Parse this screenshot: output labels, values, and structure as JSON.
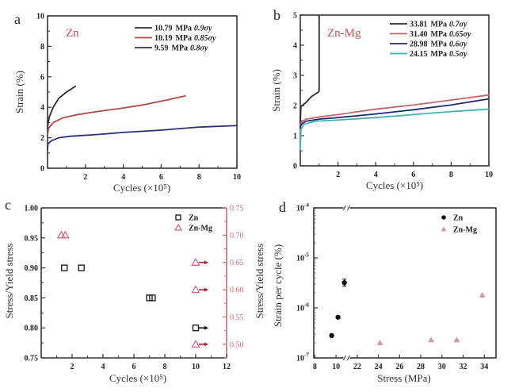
{
  "chart_data": [
    {
      "id": "a",
      "type": "line",
      "panel_label": "a",
      "material_label": "Zn",
      "xlabel": "Cycles (×10⁵)",
      "ylabel": "Strain (%)",
      "xlim": [
        0,
        10
      ],
      "ylim": [
        0,
        10
      ],
      "xticks": [
        2,
        4,
        6,
        8,
        10
      ],
      "yticks": [
        0,
        2,
        4,
        6,
        8,
        10
      ],
      "legend_position": "top-right",
      "series": [
        {
          "name": "10.79 MPa 0.9σy",
          "stress": "10.79",
          "unit": "MPa",
          "ratio": "0.9σy",
          "color": "#2b2b2b",
          "x": [
            0,
            0.02,
            0.1,
            0.3,
            0.6,
            1.0,
            1.5
          ],
          "y": [
            2.3,
            2.9,
            3.4,
            4.0,
            4.6,
            5.0,
            5.4
          ]
        },
        {
          "name": "10.19 MPa 0.85σy",
          "stress": "10.19",
          "unit": "MPa",
          "ratio": "0.85σy",
          "color": "#b04a4a",
          "x": [
            0,
            0.05,
            0.3,
            0.8,
            1.5,
            2.5,
            4.0,
            5.0,
            6.0,
            7.3
          ],
          "y": [
            2.2,
            2.6,
            3.0,
            3.3,
            3.5,
            3.7,
            3.95,
            4.15,
            4.4,
            4.75
          ]
        },
        {
          "name": "9.59 MPa 0.8σy",
          "stress": "9.59",
          "unit": "MPa",
          "ratio": "0.8σy",
          "color": "#2e2e7a",
          "x": [
            0,
            0.02,
            0.2,
            0.6,
            1.2,
            2.5,
            4.0,
            6.0,
            8.0,
            10.0
          ],
          "y": [
            1.2,
            1.6,
            1.8,
            2.0,
            2.1,
            2.2,
            2.35,
            2.5,
            2.7,
            2.8
          ]
        }
      ]
    },
    {
      "id": "b",
      "type": "line",
      "panel_label": "b",
      "material_label": "Zn-Mg",
      "xlabel": "Cycles (×10⁵)",
      "ylabel": "Strain (%)",
      "xlim": [
        0,
        10
      ],
      "ylim": [
        0,
        5
      ],
      "xticks": [
        2,
        4,
        6,
        8,
        10
      ],
      "yticks": [
        0,
        1,
        2,
        3,
        4,
        5
      ],
      "legend_position": "top-right",
      "series": [
        {
          "name": "33.81 MPa 0.7σy",
          "stress": "33.81",
          "unit": "MPa",
          "ratio": "0.7σy",
          "color": "#2b2b2b",
          "x": [
            0,
            0.03,
            0.1,
            0.3,
            0.6,
            0.97,
            1.0,
            1.0
          ],
          "y": [
            1.4,
            1.95,
            2.0,
            2.1,
            2.3,
            2.45,
            2.5,
            5.0
          ]
        },
        {
          "name": "31.40 MPa 0.65σy",
          "stress": "31.40",
          "unit": "MPa",
          "ratio": "0.65σy",
          "color": "#c0686e",
          "x": [
            0,
            0.05,
            0.3,
            1.0,
            2.0,
            4.0,
            6.0,
            8.0,
            10.0
          ],
          "y": [
            1.3,
            1.45,
            1.55,
            1.62,
            1.7,
            1.88,
            2.02,
            2.18,
            2.35
          ]
        },
        {
          "name": "28.98 MPa 0.6σy",
          "stress": "28.98",
          "unit": "MPa",
          "ratio": "0.6σy",
          "color": "#27276e",
          "x": [
            0,
            0.05,
            0.3,
            1.0,
            2.0,
            4.0,
            6.0,
            8.0,
            10.0
          ],
          "y": [
            1.25,
            1.38,
            1.48,
            1.55,
            1.6,
            1.72,
            1.86,
            2.02,
            2.22
          ]
        },
        {
          "name": "24.15 MPa 0.5σy",
          "stress": "24.15",
          "unit": "MPa",
          "ratio": "0.5σy",
          "color": "#3fb3b0",
          "x": [
            0,
            0.03,
            0.2,
            0.8,
            2.0,
            4.0,
            6.0,
            8.0,
            10.0
          ],
          "y": [
            0.5,
            1.2,
            1.38,
            1.48,
            1.52,
            1.6,
            1.7,
            1.8,
            1.88
          ]
        }
      ]
    },
    {
      "id": "c",
      "type": "scatter",
      "panel_label": "c",
      "xlabel": "Cycles (×10⁵)",
      "ylabel": "Stress/Yield stress",
      "y2label": "Stress/Yield stress",
      "xlim": [
        0,
        12
      ],
      "ylim": [
        0.75,
        1.0
      ],
      "y2lim": [
        0.475,
        0.75
      ],
      "xticks": [
        2,
        4,
        6,
        8,
        10,
        12
      ],
      "yticks": [
        "0.75",
        "0.80",
        "0.85",
        "0.90",
        "0.95",
        "1.00"
      ],
      "y2ticks": [
        "0.50",
        "0.55",
        "0.60",
        "0.65",
        "0.70",
        "0.75"
      ],
      "legend_position": "top-right",
      "series": [
        {
          "name": "Zn",
          "marker": "square",
          "color": "#222222",
          "axis": "left",
          "x": [
            1.5,
            2.6,
            7.0,
            7.2,
            10.0
          ],
          "y": [
            0.9,
            0.9,
            0.85,
            0.85,
            0.8
          ],
          "runout": [
            false,
            false,
            false,
            false,
            true
          ]
        },
        {
          "name": "Zn-Mg",
          "marker": "triangle",
          "color": "#d0607a",
          "axis": "right",
          "x": [
            1.3,
            1.55,
            10.0,
            10.0,
            10.0
          ],
          "y": [
            0.7,
            0.7,
            0.65,
            0.6,
            0.5
          ],
          "runout": [
            false,
            false,
            true,
            true,
            true
          ]
        }
      ]
    },
    {
      "id": "d",
      "type": "scatter",
      "panel_label": "d",
      "xlabel": "Stress (MPa)",
      "ylabel": "Strain per cycle (%)",
      "yscale": "log",
      "ylim": [
        1e-07,
        0.0001
      ],
      "yticks": [
        {
          "v": -7,
          "label": "10",
          "exp": "-7"
        },
        {
          "v": -6,
          "label": "10",
          "exp": "-6"
        },
        {
          "v": -5,
          "label": "10",
          "exp": "-5"
        },
        {
          "v": -4,
          "label": "10",
          "exp": "-4"
        }
      ],
      "xticks": [
        "8",
        "10",
        "22",
        "24",
        "26",
        "28",
        "30",
        "32",
        "34"
      ],
      "x_break": "axis break between 11 and 21",
      "legend_position": "top-right",
      "series": [
        {
          "name": "Zn",
          "marker": "circle",
          "color": "#111111",
          "x": [
            9.59,
            10.19,
            10.79
          ],
          "y": [
            2.8e-07,
            6.5e-07,
            3.2e-06
          ],
          "yerr_log": [
            0,
            0,
            0.07
          ]
        },
        {
          "name": "Zn-Mg",
          "marker": "triangle",
          "color": "#d89aa0",
          "x": [
            24.15,
            28.98,
            31.4,
            33.81
          ],
          "y": [
            2e-07,
            2.3e-07,
            2.3e-07,
            1.8e-06
          ]
        }
      ]
    }
  ]
}
